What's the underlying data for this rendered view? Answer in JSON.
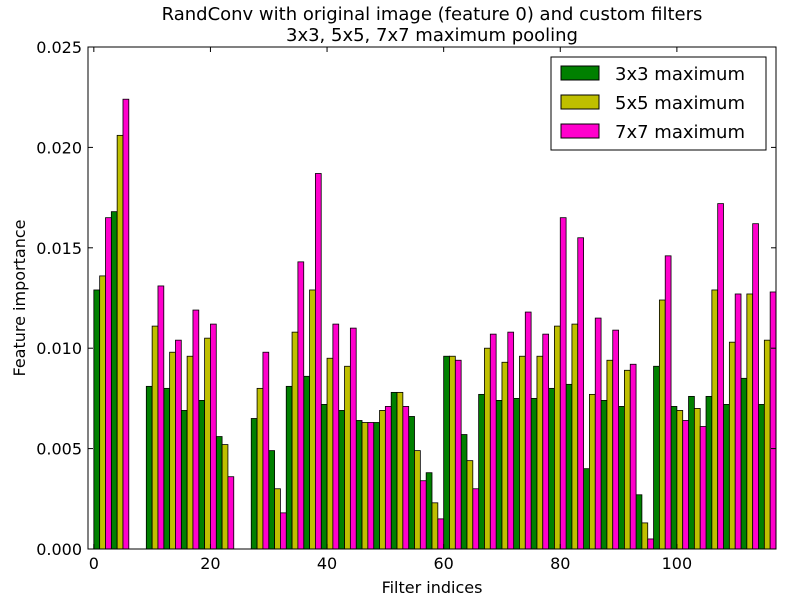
{
  "chart_data": {
    "type": "bar",
    "title": "RandConv with original image (feature 0) and custom filters",
    "subtitle": "3x3, 5x5, 7x7 maximum pooling",
    "xlabel": "Filter indices",
    "ylabel": "Feature importance",
    "xlim": [
      -1,
      117
    ],
    "ylim": [
      0,
      0.025
    ],
    "grid": false,
    "legend_position": "top-right",
    "x_ticks": [
      0,
      20,
      40,
      60,
      80,
      100
    ],
    "x_tick_labels": [
      "0",
      "20",
      "40",
      "60",
      "80",
      "100"
    ],
    "y_ticks": [
      0,
      0.005,
      0.01,
      0.015,
      0.02,
      0.025
    ],
    "y_tick_labels": [
      "0.000",
      "0.005",
      "0.010",
      "0.015",
      "0.020",
      "0.025"
    ],
    "x": [
      0,
      3,
      9,
      12,
      15,
      18,
      21,
      24,
      27,
      30,
      33,
      36,
      39,
      42,
      45,
      48,
      51,
      54,
      57,
      60,
      63,
      66,
      69,
      72,
      75,
      78,
      81,
      84,
      87,
      90,
      93,
      96,
      99,
      102,
      105,
      108,
      111,
      114
    ],
    "series": [
      {
        "name": "3x3 maximum",
        "color": "#008000",
        "values": [
          0.0129,
          0.0168,
          0.0081,
          0.008,
          0.0069,
          0.0074,
          0.0056,
          0.0,
          0.0065,
          0.0049,
          0.0081,
          0.0086,
          0.0072,
          0.0069,
          0.0064,
          0.0063,
          0.0078,
          0.0066,
          0.0038,
          0.0096,
          0.0057,
          0.0077,
          0.0074,
          0.0075,
          0.0075,
          0.008,
          0.0082,
          0.004,
          0.0074,
          0.0071,
          0.0027,
          0.0091,
          0.0071,
          0.0076,
          0.0076,
          0.0072,
          0.0085,
          0.0072
        ]
      },
      {
        "name": "5x5 maximum",
        "color": "#bfbf00",
        "values": [
          0.0136,
          0.0206,
          0.0111,
          0.0098,
          0.0096,
          0.0105,
          0.0052,
          0.0,
          0.008,
          0.003,
          0.0108,
          0.0129,
          0.0095,
          0.0091,
          0.0063,
          0.0069,
          0.0078,
          0.0049,
          0.0023,
          0.0096,
          0.0044,
          0.01,
          0.0093,
          0.0096,
          0.0096,
          0.0111,
          0.0112,
          0.0077,
          0.0094,
          0.0089,
          0.0013,
          0.0124,
          0.0069,
          0.007,
          0.0129,
          0.0103,
          0.0127,
          0.0104
        ]
      },
      {
        "name": "7x7 maximum",
        "color": "#ff00cc",
        "values": [
          0.0165,
          0.0224,
          0.0131,
          0.0104,
          0.0119,
          0.0112,
          0.0036,
          0.0,
          0.0098,
          0.0018,
          0.0143,
          0.0187,
          0.0112,
          0.011,
          0.0063,
          0.0071,
          0.0071,
          0.0034,
          0.0015,
          0.0094,
          0.003,
          0.0107,
          0.0108,
          0.0118,
          0.0107,
          0.0165,
          0.0155,
          0.0115,
          0.0109,
          0.0092,
          0.0005,
          0.0146,
          0.0064,
          0.0061,
          0.0172,
          0.0127,
          0.0162,
          0.0128
        ]
      }
    ]
  }
}
